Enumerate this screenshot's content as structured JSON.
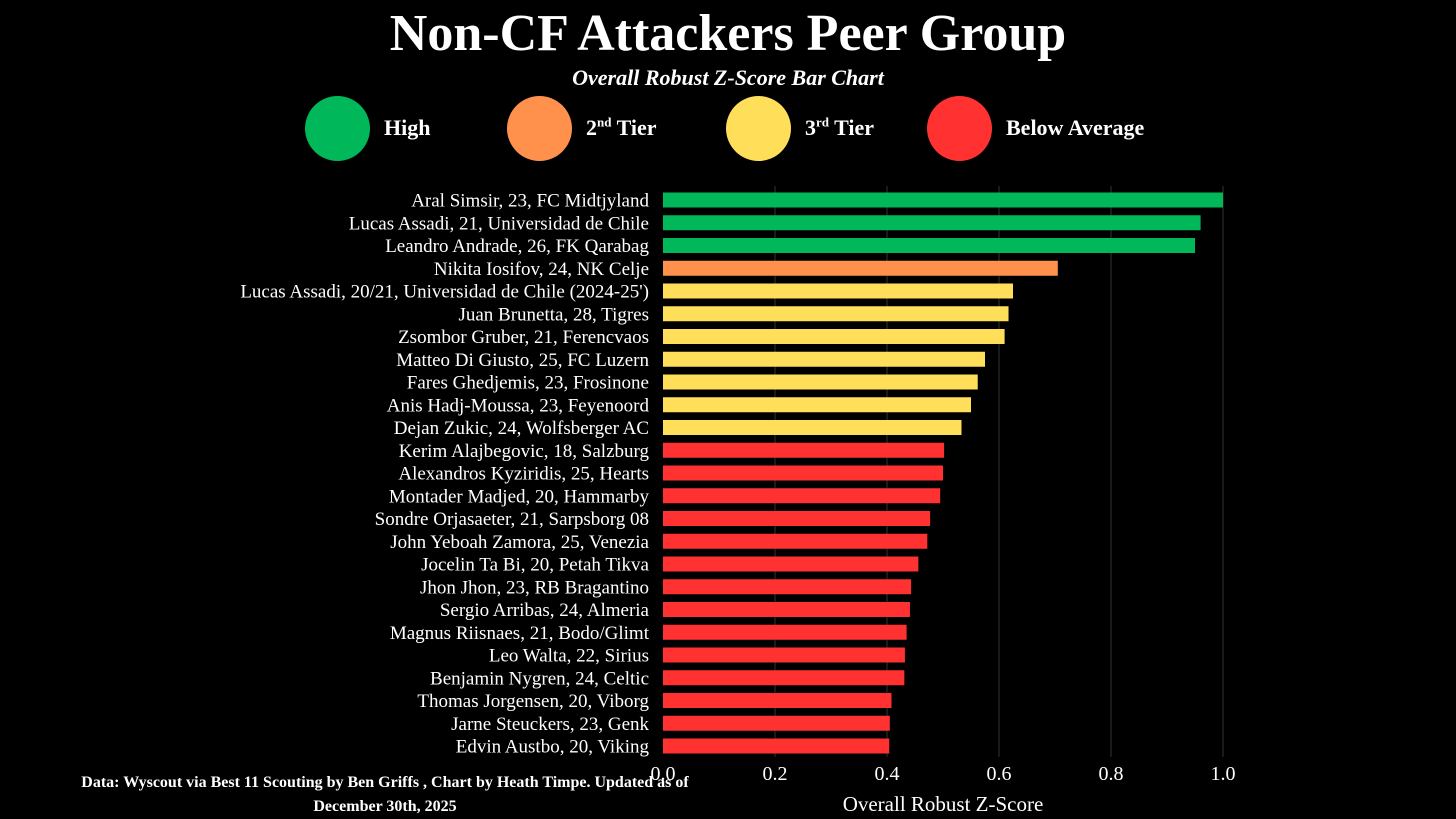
{
  "chart_data": {
    "type": "bar",
    "orientation": "horizontal",
    "title": "Non-CF Attackers Peer Group",
    "subtitle": "Overall Robust Z-Score Bar Chart",
    "xlabel": "Overall Robust Z-Score",
    "ylabel": "",
    "xlim": [
      0,
      1.0
    ],
    "xticks": [
      "0.0",
      "0.2",
      "0.4",
      "0.6",
      "0.8",
      "1.0"
    ],
    "grid": true,
    "legend": {
      "placement": "top",
      "entries": [
        {
          "label": "High",
          "sup": "",
          "suffix": "",
          "color": "#00b85a"
        },
        {
          "label": "2",
          "sup": "nd",
          "suffix": " Tier",
          "color": "#ff914d"
        },
        {
          "label": "3",
          "sup": "rd",
          "suffix": " Tier",
          "color": "#ffde59"
        },
        {
          "label": "Below Average",
          "sup": "",
          "suffix": "",
          "color": "#ff3131"
        }
      ]
    },
    "categories": [
      "Aral Simsir, 23, FC Midtjyland",
      "Lucas Assadi, 21, Universidad de Chile",
      "Leandro Andrade, 26, FK Qarabag",
      "Nikita Iosifov, 24, NK Celje",
      "Lucas Assadi, 20/21, Universidad de Chile (2024-25')",
      "Juan Brunetta, 28, Tigres",
      "Zsombor Gruber, 21, Ferencvaos",
      "Matteo Di Giusto, 25, FC Luzern",
      "Fares Ghedjemis, 23, Frosinone",
      "Anis Hadj-Moussa, 23, Feyenoord",
      "Dejan Zukic, 24, Wolfsberger AC",
      "Kerim Alajbegovic, 18, Salzburg",
      "Alexandros Kyziridis, 25, Hearts",
      "Montader Madjed, 20, Hammarby",
      "Sondre Orjasaeter, 21, Sarpsborg 08",
      "John Yeboah Zamora, 25, Venezia",
      "Jocelin Ta Bi, 20, Petah Tikva",
      "Jhon Jhon, 23, RB Bragantino",
      "Sergio Arribas, 24, Almeria",
      "Magnus Riisnaes, 21, Bodo/Glimt",
      "Leo Walta, 22, Sirius",
      "Benjamin Nygren, 24, Celtic",
      "Thomas Jorgensen, 20, Viborg",
      "Jarne Steuckers, 23, Genk",
      "Edvin Austbo, 20, Viking"
    ],
    "values": [
      1.0,
      0.96,
      0.95,
      0.705,
      0.625,
      0.617,
      0.61,
      0.575,
      0.562,
      0.55,
      0.533,
      0.502,
      0.5,
      0.495,
      0.477,
      0.472,
      0.456,
      0.443,
      0.441,
      0.435,
      0.432,
      0.431,
      0.408,
      0.405,
      0.404
    ],
    "tiers": [
      "High",
      "High",
      "High",
      "2nd Tier",
      "3rd Tier",
      "3rd Tier",
      "3rd Tier",
      "3rd Tier",
      "3rd Tier",
      "3rd Tier",
      "3rd Tier",
      "Below Average",
      "Below Average",
      "Below Average",
      "Below Average",
      "Below Average",
      "Below Average",
      "Below Average",
      "Below Average",
      "Below Average",
      "Below Average",
      "Below Average",
      "Below Average",
      "Below Average",
      "Below Average"
    ],
    "tier_colors": {
      "High": "#00b85a",
      "2nd Tier": "#ff914d",
      "3rd Tier": "#ffde59",
      "Below Average": "#ff3131"
    },
    "grid_color": "#333333"
  },
  "footnote": {
    "line1": "Data: Wyscout via Best 11 Scouting by Ben Griffs , Chart by Heath Timpe. Updated as of",
    "line2": "December 30th, 2025"
  }
}
